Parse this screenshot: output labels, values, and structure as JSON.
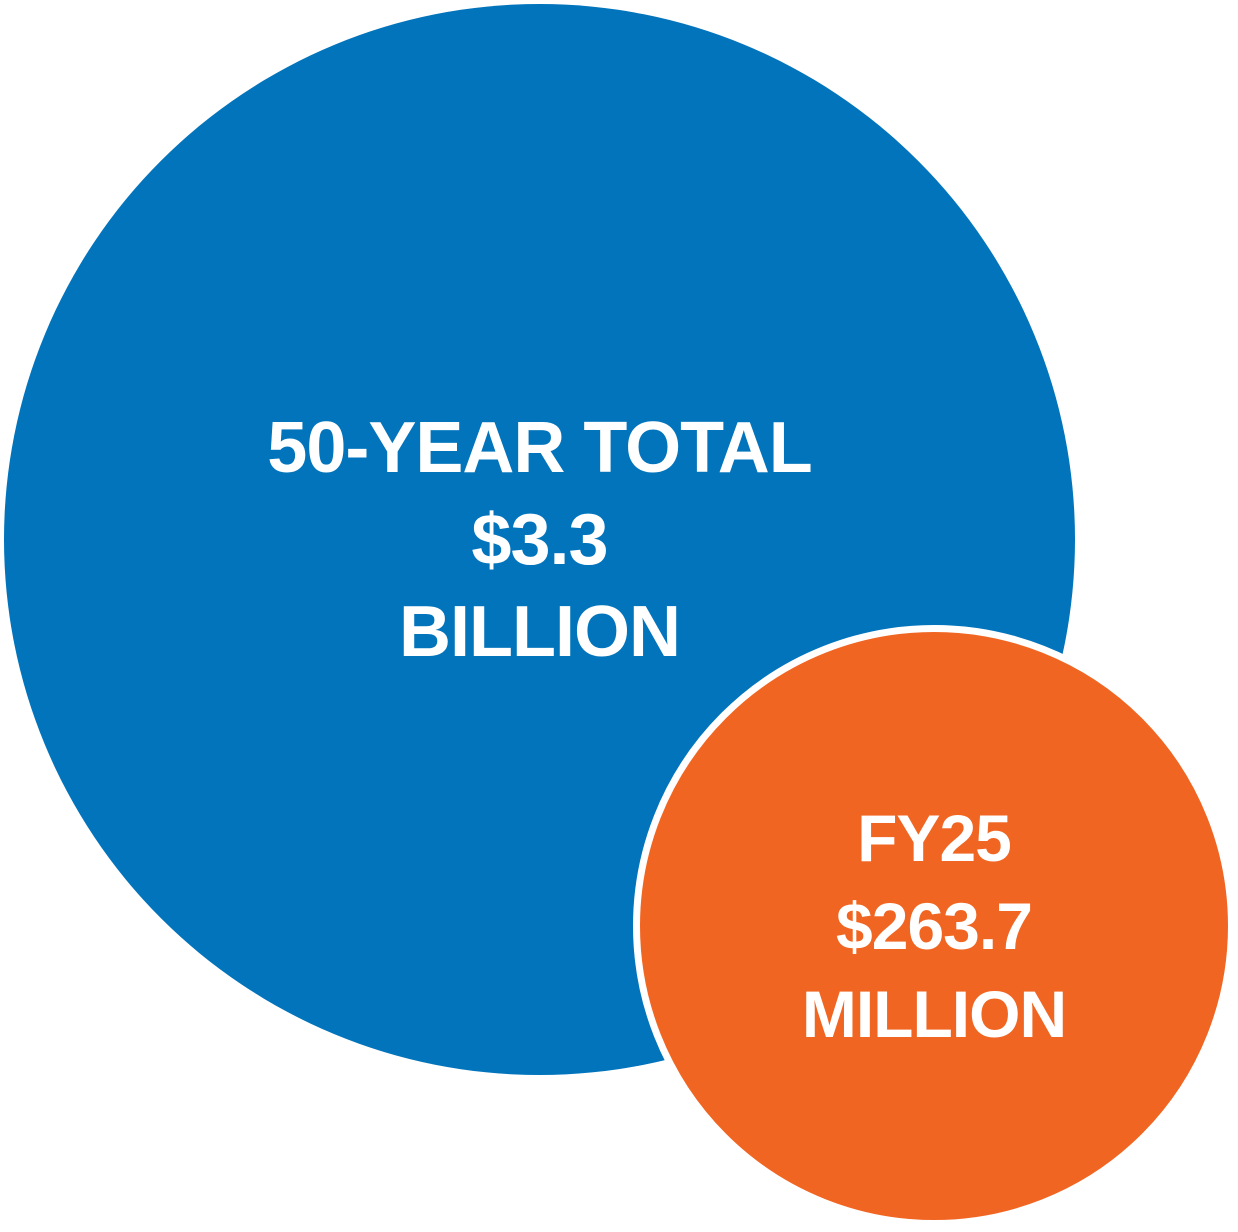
{
  "chart_data": {
    "type": "bubble",
    "description": "Area comparison of two circles",
    "background": "#FFFFFF",
    "legend": "none",
    "series": [
      {
        "name": "50-year-total",
        "label": "50-YEAR TOTAL",
        "value_text": "$3.3 BILLION",
        "value_millions": 3300,
        "lines": [
          "50-YEAR TOTAL",
          "$3.3",
          "BILLION"
        ],
        "color": "#0274BC",
        "text_color": "#FFFFFF"
      },
      {
        "name": "fy25",
        "label": "FY25",
        "value_text": "$263.7 MILLION",
        "value_millions": 263.7,
        "lines": [
          "FY25",
          "$263.7",
          "MILLION"
        ],
        "color": "#F16522",
        "text_color": "#FFFFFF",
        "outline_color": "#FFFFFF"
      }
    ]
  }
}
